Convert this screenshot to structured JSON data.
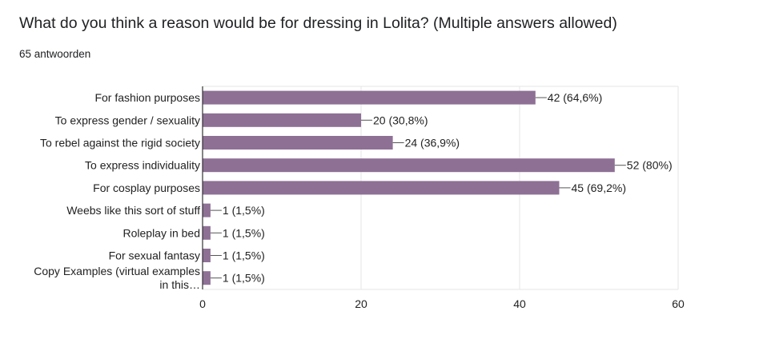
{
  "question": {
    "title": "What do you think a reason would be for dressing in Lolita? (Multiple answers allowed)",
    "response_count": "65 antwoorden"
  },
  "colors": {
    "bar": "#8e7095",
    "grid": "#e6e6e6",
    "axis": "#333333"
  },
  "chart_data": {
    "type": "bar",
    "orientation": "horizontal",
    "title": "",
    "xlabel": "",
    "ylabel": "",
    "xlim": [
      0,
      60
    ],
    "x_ticks": [
      0,
      20,
      40,
      60
    ],
    "grid": true,
    "categories": [
      [
        "For fashion purposes"
      ],
      [
        "To express gender / sexuality"
      ],
      [
        "To rebel against the rigid society"
      ],
      [
        "To express individuality"
      ],
      [
        "For cosplay purposes"
      ],
      [
        "Weebs like this sort of stuff"
      ],
      [
        "Roleplay in bed"
      ],
      [
        "For sexual fantasy"
      ],
      [
        "Copy Examples (virtual examples",
        "in this…"
      ]
    ],
    "values": [
      42,
      20,
      24,
      52,
      45,
      1,
      1,
      1,
      1
    ],
    "data_labels": [
      "42 (64,6%)",
      "20 (30,8%)",
      "24 (36,9%)",
      "52 (80%)",
      "45 (69,2%)",
      "1 (1,5%)",
      "1 (1,5%)",
      "1 (1,5%)",
      "1 (1,5%)"
    ]
  }
}
